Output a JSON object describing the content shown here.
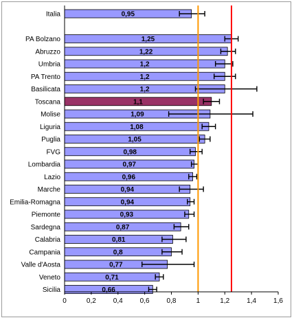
{
  "chart_data": {
    "type": "bar",
    "orientation": "horizontal",
    "title": "",
    "xlabel": "",
    "ylabel": "",
    "xlim": [
      0,
      1.6
    ],
    "x_ticks": [
      "0",
      "0,2",
      "0,4",
      "0,6",
      "0,8",
      "1",
      "1,2",
      "1,4",
      "1,6"
    ],
    "x_tick_values": [
      0,
      0.2,
      0.4,
      0.6,
      0.8,
      1.0,
      1.2,
      1.4,
      1.6
    ],
    "grid": false,
    "bar_color": "#9999ff",
    "highlight_color": "#993366",
    "highlight_category": "Toscana",
    "reference_lines": [
      {
        "value": 1.0,
        "color": "#ff9900"
      },
      {
        "value": 1.25,
        "color": "#ff0000"
      }
    ],
    "items": [
      {
        "category": "Italia",
        "value": 0.95,
        "label": "0,95",
        "err_low": 0.86,
        "err_high": 1.05
      },
      {
        "category": "",
        "value": null,
        "label": "",
        "err_low": null,
        "err_high": null
      },
      {
        "category": "PA Bolzano",
        "value": 1.25,
        "label": "1,25",
        "err_low": 1.2,
        "err_high": 1.3
      },
      {
        "category": "Abruzzo",
        "value": 1.22,
        "label": "1,22",
        "err_low": 1.17,
        "err_high": 1.28
      },
      {
        "category": "Umbria",
        "value": 1.2,
        "label": "1,2",
        "err_low": 1.13,
        "err_high": 1.26
      },
      {
        "category": "PA Trento",
        "value": 1.2,
        "label": "1,2",
        "err_low": 1.12,
        "err_high": 1.28
      },
      {
        "category": "Basilicata",
        "value": 1.2,
        "label": "1,2",
        "err_low": 0.98,
        "err_high": 1.44
      },
      {
        "category": "Toscana",
        "value": 1.1,
        "label": "1,1",
        "err_low": 1.04,
        "err_high": 1.16
      },
      {
        "category": "Molise",
        "value": 1.09,
        "label": "1,09",
        "err_low": 0.78,
        "err_high": 1.41
      },
      {
        "category": "Liguria",
        "value": 1.08,
        "label": "1,08",
        "err_low": 1.03,
        "err_high": 1.13
      },
      {
        "category": "Puglia",
        "value": 1.05,
        "label": "1,05",
        "err_low": 1.01,
        "err_high": 1.09
      },
      {
        "category": "FVG",
        "value": 0.98,
        "label": "0,98",
        "err_low": 0.94,
        "err_high": 1.03
      },
      {
        "category": "Lombardia",
        "value": 0.97,
        "label": "0,97",
        "err_low": 0.95,
        "err_high": 1.0
      },
      {
        "category": "Lazio",
        "value": 0.96,
        "label": "0,96",
        "err_low": 0.93,
        "err_high": 0.99
      },
      {
        "category": "Marche",
        "value": 0.94,
        "label": "0,94",
        "err_low": 0.86,
        "err_high": 1.04
      },
      {
        "category": "Emilia-Romagna",
        "value": 0.94,
        "label": "0,94",
        "err_low": 0.92,
        "err_high": 0.97
      },
      {
        "category": "Piemonte",
        "value": 0.93,
        "label": "0,93",
        "err_low": 0.9,
        "err_high": 0.97
      },
      {
        "category": "Sardegna",
        "value": 0.87,
        "label": "0,87",
        "err_low": 0.82,
        "err_high": 0.93
      },
      {
        "category": "Calabria",
        "value": 0.81,
        "label": "0,81",
        "err_low": 0.73,
        "err_high": 0.91
      },
      {
        "category": "Campania",
        "value": 0.8,
        "label": "0,8",
        "err_low": 0.73,
        "err_high": 0.88
      },
      {
        "category": "Valle d'Aosta",
        "value": 0.77,
        "label": "0,77",
        "err_low": 0.58,
        "err_high": 0.97
      },
      {
        "category": "Veneto",
        "value": 0.71,
        "label": "0,71",
        "err_low": 0.68,
        "err_high": 0.74
      },
      {
        "category": "Sicilia",
        "value": 0.66,
        "label": "0,66",
        "err_low": 0.63,
        "err_high": 0.69
      }
    ]
  }
}
